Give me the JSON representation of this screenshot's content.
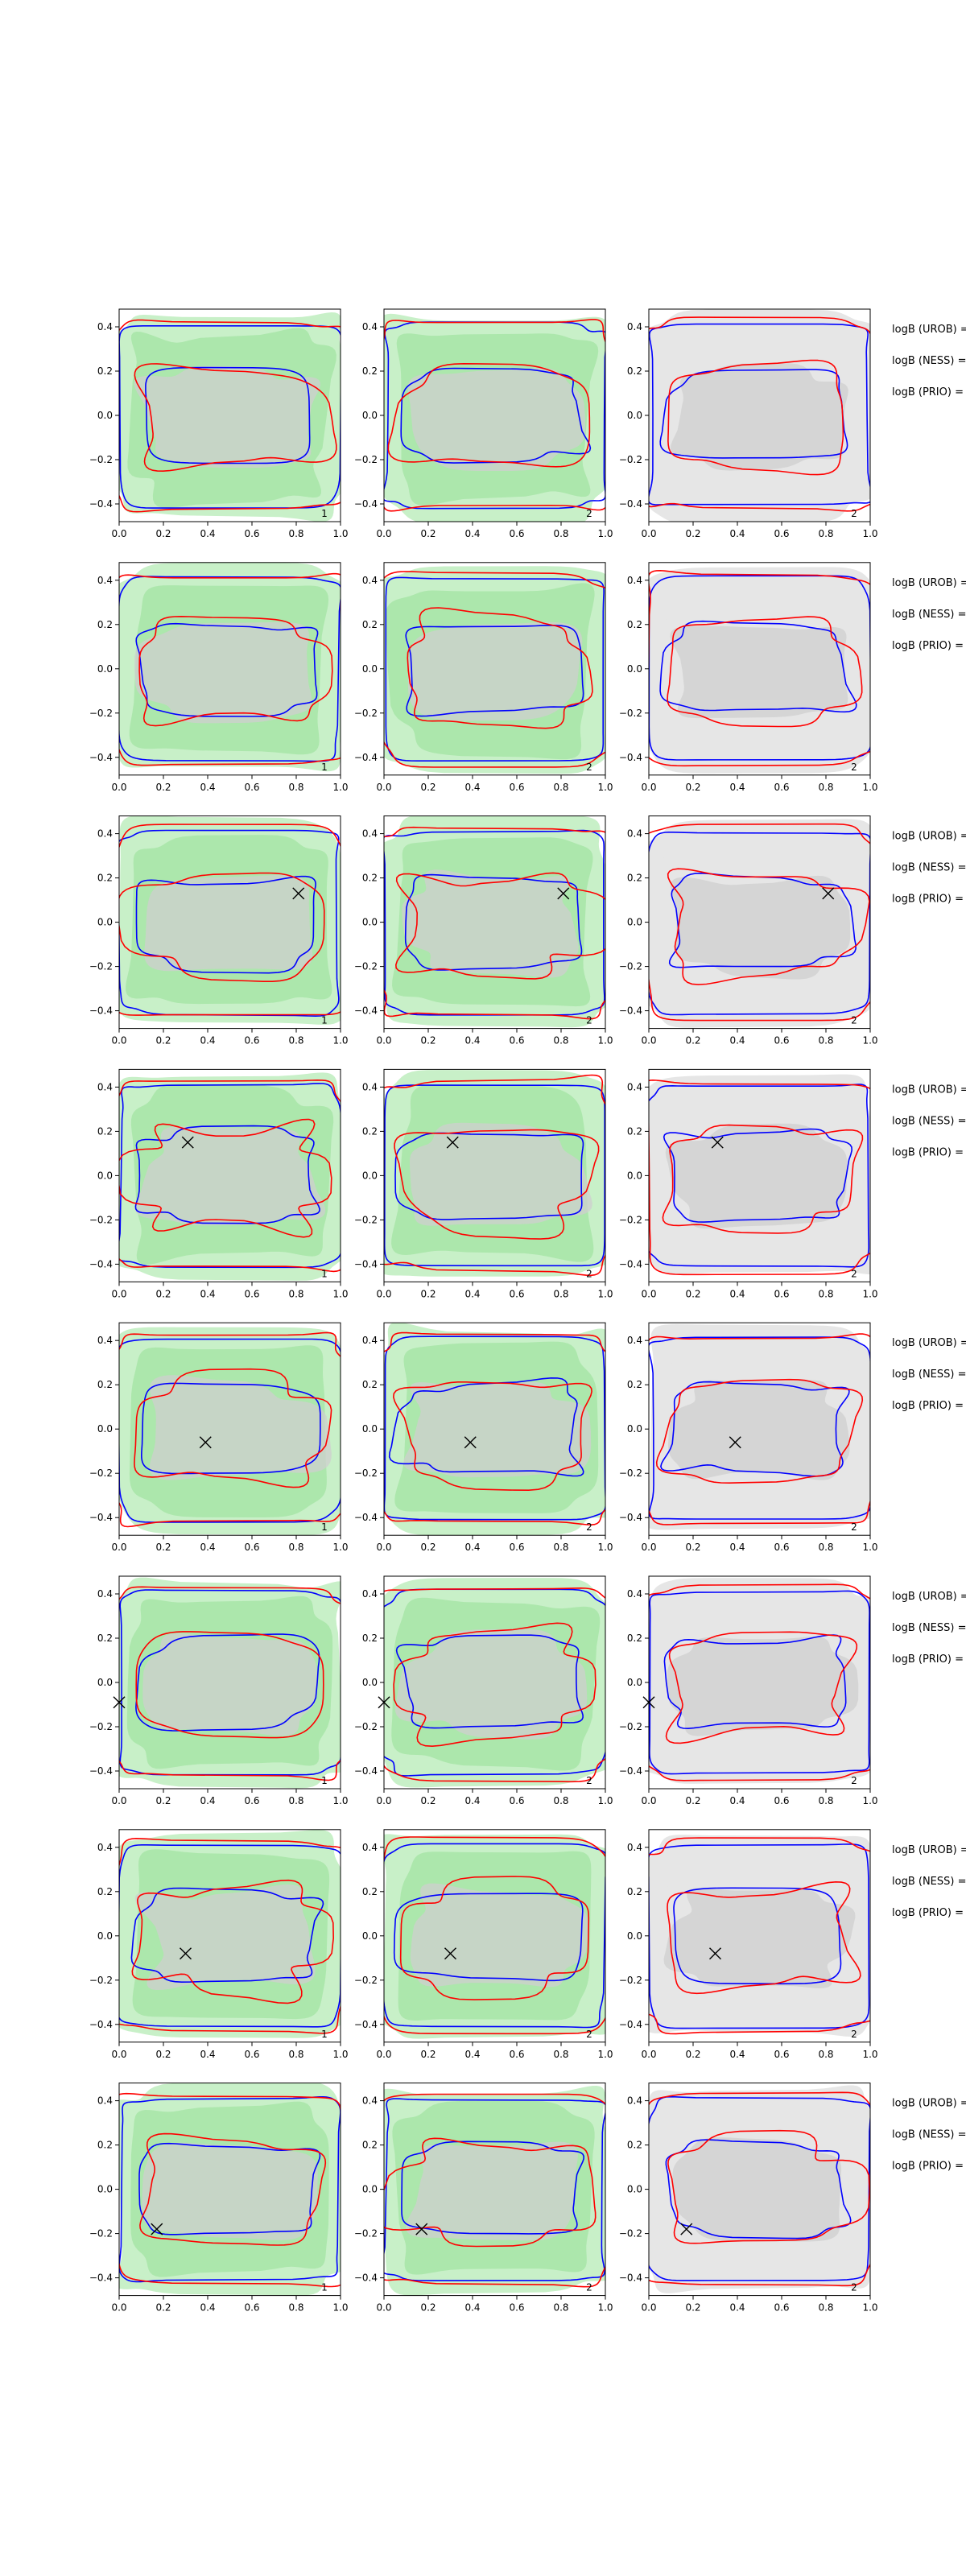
{
  "figure": {
    "background": "#ffffff",
    "columns": 3,
    "rows": 8
  },
  "colors": {
    "red_contour": "#ff0000",
    "blue_contour": "#0000ff",
    "green_fill_light": "#c8f0c8",
    "green_fill": "#a8e6a8",
    "gray_fill_light": "#e6e6e6",
    "gray_fill": "#cfcfcf",
    "marker": "#000000"
  },
  "side_labels": [
    "logB (UROB) =",
    "logB (NESS) =",
    "logB (PRIO) ="
  ],
  "chart_data": {
    "type": "contour",
    "xlim": [
      0.0,
      1.0
    ],
    "ylim": [
      -0.48,
      0.48
    ],
    "x_ticks": [
      "0.0",
      "0.2",
      "0.4",
      "0.6",
      "0.8",
      "1.0"
    ],
    "y_ticks": [
      "−0.4",
      "−0.2",
      "0.0",
      "0.2",
      "0.4"
    ],
    "panel_backgrounds": [
      "green",
      "green",
      "gray"
    ],
    "panel_numbers": [
      "1",
      "2",
      "2"
    ],
    "rows": [
      {
        "marker": null
      },
      {
        "marker": null
      },
      {
        "marker": [
          0.81,
          0.13
        ]
      },
      {
        "marker": [
          0.31,
          0.15
        ]
      },
      {
        "marker": [
          0.39,
          -0.06
        ]
      },
      {
        "marker": [
          0.0,
          -0.09
        ]
      },
      {
        "marker": [
          0.3,
          -0.08
        ]
      },
      {
        "marker": [
          0.17,
          -0.18
        ]
      }
    ]
  }
}
